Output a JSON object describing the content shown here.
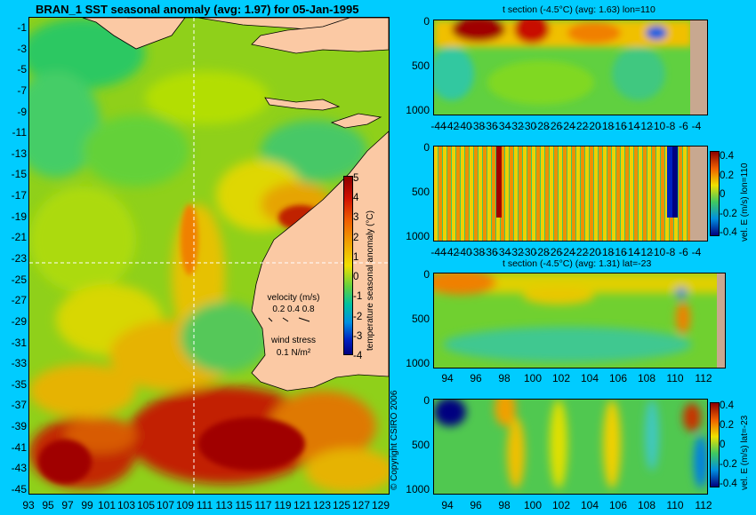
{
  "map": {
    "title": "BRAN_1 SST seasonal anomaly (avg: 1.97) for 05-Jan-1995",
    "lat_ticks": [
      "-1",
      "-3",
      "-5",
      "-7",
      "-9",
      "-11",
      "-13",
      "-15",
      "-17",
      "-19",
      "-21",
      "-23",
      "-25",
      "-27",
      "-29",
      "-31",
      "-33",
      "-35",
      "-37",
      "-39",
      "-41",
      "-43",
      "-45"
    ],
    "lon_ticks": [
      "93",
      "95",
      "97",
      "99",
      "101",
      "103",
      "105",
      "107",
      "109",
      "111",
      "113",
      "115",
      "117",
      "119",
      "121",
      "123",
      "125",
      "127",
      "129"
    ],
    "colorbar": {
      "label": "temperature seasonal anomaly (°C)",
      "ticks": [
        "5",
        "4",
        "3",
        "2",
        "1",
        "0",
        "-1",
        "-2",
        "-3",
        "-4"
      ]
    },
    "legend": {
      "velocity_title": "velocity (m/s)",
      "velocity_scale": "0.2 0.4 0.8",
      "wind_title": "wind stress",
      "wind_scale": "0.1 N/m²"
    },
    "copyright": "© Copyright CSIRO 2006",
    "colors": {
      "land": "#fbc9a4",
      "background": "#00ccff"
    }
  },
  "panels": [
    {
      "title": "t section (-4.5°C) (avg: 1.63) lon=110",
      "y_ticks": [
        "0",
        "500",
        "1000"
      ],
      "x_ticks": [
        "-44",
        "-42",
        "-40",
        "-38",
        "-36",
        "-34",
        "-32",
        "-30",
        "-28",
        "-26",
        "-24",
        "-22",
        "-20",
        "-18",
        "-16",
        "-14",
        "-12",
        "-10",
        "-8",
        "-6",
        "-4"
      ]
    },
    {
      "title": "",
      "y_ticks": [
        "0",
        "500",
        "1000"
      ],
      "x_ticks": [
        "-44",
        "-42",
        "-40",
        "-38",
        "-36",
        "-34",
        "-32",
        "-30",
        "-28",
        "-26",
        "-24",
        "-22",
        "-20",
        "-18",
        "-16",
        "-14",
        "-12",
        "-10",
        "-8",
        "-6",
        "-4"
      ],
      "colorbar": {
        "label": "vel. E (m/s) lon=110",
        "ticks": [
          "0.4",
          "0.2",
          "0",
          "-0.2",
          "-0.4"
        ]
      }
    },
    {
      "title": "t section (-4.5°C) (avg: 1.31) lat=-23",
      "y_ticks": [
        "0",
        "500",
        "1000"
      ],
      "x_ticks": [
        "94",
        "96",
        "98",
        "100",
        "102",
        "104",
        "106",
        "108",
        "110",
        "112"
      ]
    },
    {
      "title": "",
      "y_ticks": [
        "0",
        "500",
        "1000"
      ],
      "x_ticks": [
        "94",
        "96",
        "98",
        "100",
        "102",
        "104",
        "106",
        "108",
        "110",
        "112"
      ],
      "colorbar": {
        "label": "vel. E (m/s) lat=-23",
        "ticks": [
          "0.4",
          "0.2",
          "0",
          "-0.2",
          "-0.4"
        ]
      }
    }
  ]
}
